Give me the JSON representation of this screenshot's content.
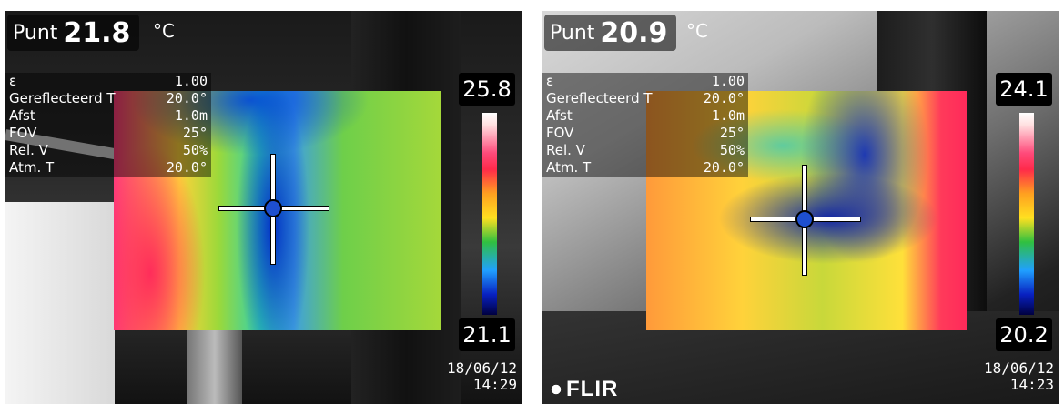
{
  "left": {
    "spot_label": "Punt",
    "spot_value": "21.8",
    "unit": "°C",
    "params": [
      {
        "label": "ε",
        "value": "1.00"
      },
      {
        "label": "Gereflecteerd T",
        "value": "20.0°"
      },
      {
        "label": "Afst",
        "value": "1.0m"
      },
      {
        "label": "FOV",
        "value": "25°"
      },
      {
        "label": "Rel. V",
        "value": "50%"
      },
      {
        "label": "Atm. T",
        "value": "20.0°"
      }
    ],
    "scale_max": "25.8",
    "scale_min": "21.1",
    "date": "18/06/12",
    "time": "14:29"
  },
  "right": {
    "spot_label": "Punt",
    "spot_value": "20.9",
    "unit": "°C",
    "params": [
      {
        "label": "ε",
        "value": "1.00"
      },
      {
        "label": "Gereflecteerd T",
        "value": "20.0°"
      },
      {
        "label": "Afst",
        "value": "1.0m"
      },
      {
        "label": "FOV",
        "value": "25°"
      },
      {
        "label": "Rel. V",
        "value": "50%"
      },
      {
        "label": "Atm. T",
        "value": "20.0°"
      }
    ],
    "scale_max": "24.1",
    "scale_min": "20.2",
    "date": "18/06/12",
    "time": "14:23",
    "logo": "FLIR"
  },
  "icons": {
    "crosshair": "crosshair-icon",
    "logo": "flir-logo-icon"
  }
}
